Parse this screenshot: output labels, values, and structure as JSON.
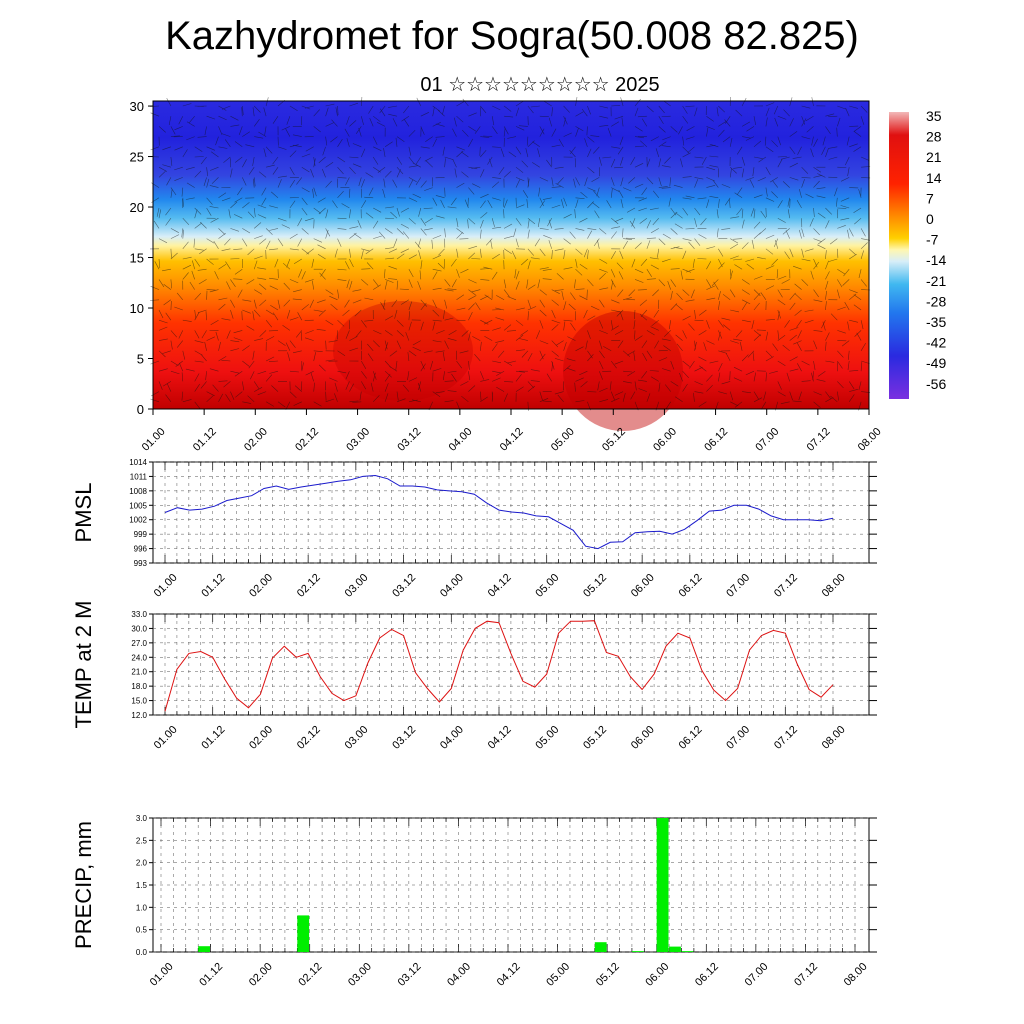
{
  "title": "Kazhydromet for Sogra(50.008 82.825)",
  "subtitle": "01 ☆☆☆☆☆☆☆☆☆ 2025",
  "chart_data": [
    {
      "type": "heatmap",
      "title": "",
      "xlabel": "",
      "ylabel": "",
      "x_tick_labels": [
        "01.00",
        "01.12",
        "02.00",
        "02.12",
        "03.00",
        "03.12",
        "04.00",
        "04.12",
        "05.00",
        "05.12",
        "06.00",
        "06.12",
        "07.00",
        "07.12",
        "08.00"
      ],
      "y_ticks": [
        0,
        5,
        10,
        15,
        20,
        25,
        30
      ],
      "ylim": [
        0,
        30.5
      ],
      "colorbar_labels": [
        "35",
        "28",
        "21",
        "14",
        "7",
        "0",
        "-7",
        "-14",
        "-21",
        "-28",
        "-35",
        "-42",
        "-49",
        "-56"
      ],
      "colorbar_range": [
        -60,
        38
      ],
      "freezing_level_approx": 16,
      "overlay": "wind barbs"
    },
    {
      "type": "line",
      "ylabel": "PMSL",
      "x_tick_labels": [
        "01.00",
        "01.12",
        "02.00",
        "02.12",
        "03.00",
        "03.12",
        "04.00",
        "04.12",
        "05.00",
        "05.12",
        "06.00",
        "06.12",
        "07.00",
        "07.12",
        "08.00"
      ],
      "y_ticks": [
        "993",
        "996",
        "999",
        "1002",
        "1005",
        "1008",
        "1011",
        "1014"
      ],
      "ylim": [
        993,
        1014
      ],
      "grid": true,
      "series": [
        {
          "color": "#1a1acc",
          "values": [
            1003.5,
            1004.5,
            1004,
            1004.2,
            1004.8,
            1006,
            1006.5,
            1007,
            1008.5,
            1009,
            1008.3,
            1008.8,
            1009.2,
            1009.6,
            1010,
            1010.3,
            1011,
            1011.2,
            1010.5,
            1009,
            1009,
            1008.8,
            1008.2,
            1008,
            1007.8,
            1007.3,
            1005.5,
            1004,
            1003.6,
            1003.4,
            1002.8,
            1002.6,
            1001.2,
            999.8,
            996.5,
            996,
            997.3,
            997.4,
            999.3,
            999.5,
            999.6,
            999,
            1000,
            1001.8,
            1003.8,
            1004,
            1005,
            1005,
            1004.2,
            1002.8,
            1002,
            1002,
            1002,
            1001.8,
            1002.3
          ]
        }
      ]
    },
    {
      "type": "line",
      "ylabel": "TEMP at 2 M",
      "x_tick_labels": [
        "01.00",
        "01.12",
        "02.00",
        "02.12",
        "03.00",
        "03.12",
        "04.00",
        "04.12",
        "05.00",
        "05.12",
        "06.00",
        "06.12",
        "07.00",
        "07.12",
        "08.00"
      ],
      "y_ticks": [
        "12.0",
        "15.0",
        "18.0",
        "21.0",
        "24.0",
        "27.0",
        "30.0",
        "33.0"
      ],
      "ylim": [
        12,
        33
      ],
      "grid": true,
      "series": [
        {
          "color": "#dd1111",
          "values": [
            12.8,
            21.5,
            24.8,
            25.2,
            24,
            19.5,
            15.5,
            13.5,
            16.3,
            23.8,
            26.3,
            24,
            24.8,
            20,
            16.5,
            15,
            16,
            22.8,
            28,
            29.8,
            28.5,
            20.8,
            17.5,
            14.7,
            17.5,
            25.5,
            30,
            31.5,
            31.2,
            24.8,
            19,
            17.8,
            20.5,
            29,
            31.5,
            31.5,
            31.6,
            25,
            24.2,
            20,
            17.3,
            20.5,
            26.3,
            29,
            28,
            21.3,
            17.2,
            15,
            17.5,
            25.5,
            28.5,
            29.6,
            29,
            22.6,
            17.3,
            15.7,
            18.3
          ]
        }
      ]
    },
    {
      "type": "bar",
      "ylabel": "PRECIP, mm",
      "x_tick_labels": [
        "01.00",
        "01.12",
        "02.00",
        "02.12",
        "03.00",
        "03.12",
        "04.00",
        "04.12",
        "05.00",
        "05.12",
        "06.00",
        "06.12",
        "07.00",
        "07.12",
        "08.00"
      ],
      "y_ticks": [
        "0.0",
        "0.5",
        "1.0",
        "1.5",
        "2.0",
        "2.5",
        "3.0"
      ],
      "ylim": [
        0,
        3
      ],
      "grid": true,
      "bar_color": "#00ee00",
      "bars": [
        {
          "x": 3,
          "value": 0.13
        },
        {
          "x": 11,
          "value": 0.82
        },
        {
          "x": 35,
          "value": 0.22
        },
        {
          "x": 38,
          "value": 0.02
        },
        {
          "x": 40,
          "value": 3.0
        },
        {
          "x": 41,
          "value": 0.12
        },
        {
          "x": 42,
          "value": 0.02
        }
      ],
      "n_slots": 56
    }
  ]
}
